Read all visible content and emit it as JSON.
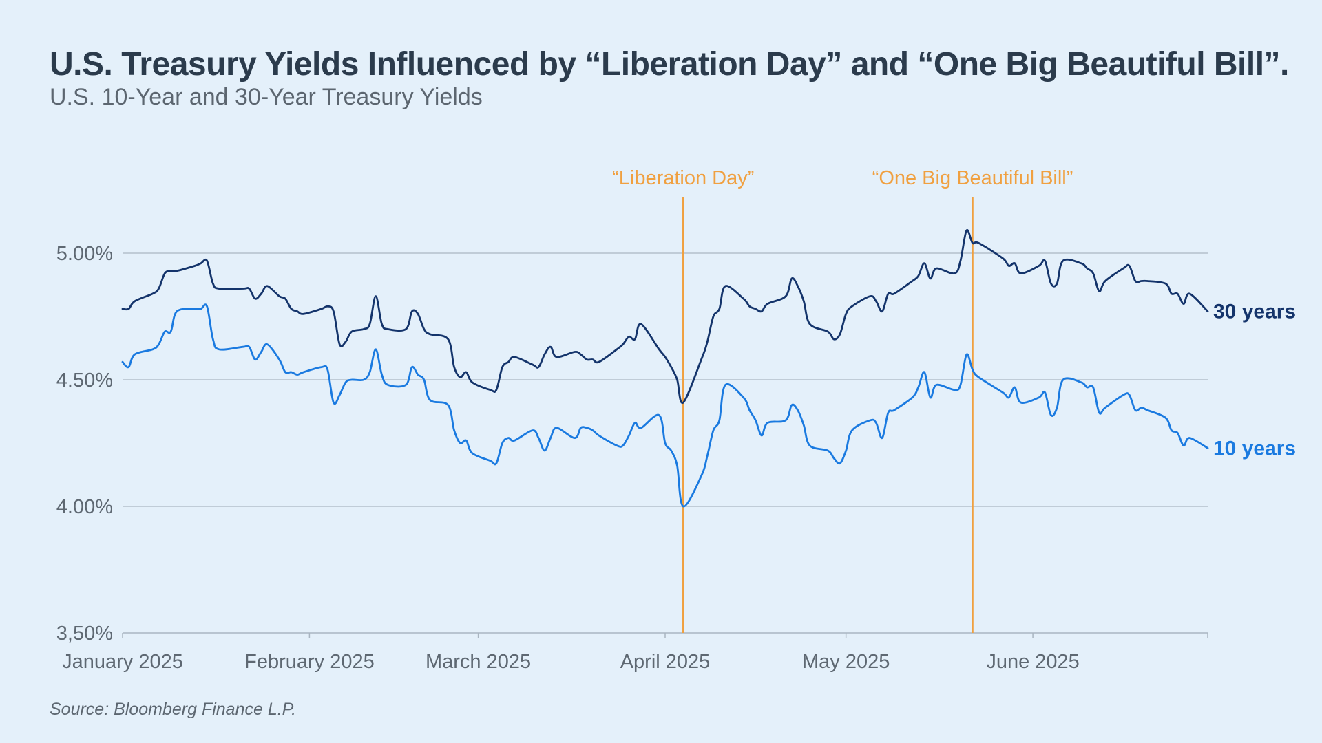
{
  "chart_data": {
    "type": "line",
    "title": "U.S. Treasury Yields Influenced by “Liberation Day” and “One Big Beautiful Bill”.",
    "subtitle": "U.S. 10-Year and 30-Year Treasury Yields",
    "source": "Source: Bloomberg Finance L.P.",
    "x_range": [
      "2025-01-01",
      "2025-06-30"
    ],
    "y_range": [
      3.5,
      5.0
    ],
    "y_ticks": [
      {
        "value": 5.0,
        "label": "5.00%"
      },
      {
        "value": 4.5,
        "label": "4.50%"
      },
      {
        "value": 4.0,
        "label": "4.00%"
      },
      {
        "value": 3.5,
        "label": "3,50%"
      }
    ],
    "x_ticks": [
      {
        "date": "2025-01-01",
        "label": "January 2025"
      },
      {
        "date": "2025-02-01",
        "label": "February 2025"
      },
      {
        "date": "2025-03-01",
        "label": "March 2025"
      },
      {
        "date": "2025-04-01",
        "label": "April 2025"
      },
      {
        "date": "2025-05-01",
        "label": "May 2025"
      },
      {
        "date": "2025-06-01",
        "label": "June 2025"
      }
    ],
    "grid": "horizontal",
    "annotations": [
      {
        "date": "2025-04-04",
        "label": "“Liberation Day”",
        "color": "#f0a040"
      },
      {
        "date": "2025-05-22",
        "label": "“One Big Beautiful Bill”",
        "color": "#f0a040"
      }
    ],
    "series": [
      {
        "name": "30 years",
        "color": "#14346b",
        "points": [
          [
            "2025-01-01",
            4.78
          ],
          [
            "2025-01-02",
            4.78
          ],
          [
            "2025-01-03",
            4.81
          ],
          [
            "2025-01-06",
            4.84
          ],
          [
            "2025-01-07",
            4.86
          ],
          [
            "2025-01-08",
            4.92
          ],
          [
            "2025-01-09",
            4.93
          ],
          [
            "2025-01-10",
            4.93
          ],
          [
            "2025-01-13",
            4.95
          ],
          [
            "2025-01-14",
            4.96
          ],
          [
            "2025-01-15",
            4.97
          ],
          [
            "2025-01-16",
            4.88
          ],
          [
            "2025-01-17",
            4.86
          ],
          [
            "2025-01-21",
            4.86
          ],
          [
            "2025-01-22",
            4.86
          ],
          [
            "2025-01-23",
            4.82
          ],
          [
            "2025-01-24",
            4.84
          ],
          [
            "2025-01-25",
            4.87
          ],
          [
            "2025-01-27",
            4.83
          ],
          [
            "2025-01-28",
            4.82
          ],
          [
            "2025-01-29",
            4.78
          ],
          [
            "2025-01-30",
            4.77
          ],
          [
            "2025-01-31",
            4.76
          ],
          [
            "2025-02-03",
            4.78
          ],
          [
            "2025-02-04",
            4.79
          ],
          [
            "2025-02-05",
            4.77
          ],
          [
            "2025-02-06",
            4.64
          ],
          [
            "2025-02-07",
            4.65
          ],
          [
            "2025-02-08",
            4.69
          ],
          [
            "2025-02-10",
            4.7
          ],
          [
            "2025-02-11",
            4.72
          ],
          [
            "2025-02-12",
            4.83
          ],
          [
            "2025-02-13",
            4.72
          ],
          [
            "2025-02-14",
            4.7
          ],
          [
            "2025-02-17",
            4.7
          ],
          [
            "2025-02-18",
            4.77
          ],
          [
            "2025-02-19",
            4.76
          ],
          [
            "2025-02-20",
            4.7
          ],
          [
            "2025-02-21",
            4.68
          ],
          [
            "2025-02-24",
            4.66
          ],
          [
            "2025-02-25",
            4.55
          ],
          [
            "2025-02-26",
            4.51
          ],
          [
            "2025-02-27",
            4.53
          ],
          [
            "2025-02-28",
            4.49
          ],
          [
            "2025-03-03",
            4.46
          ],
          [
            "2025-03-04",
            4.46
          ],
          [
            "2025-03-05",
            4.55
          ],
          [
            "2025-03-06",
            4.57
          ],
          [
            "2025-03-07",
            4.59
          ],
          [
            "2025-03-10",
            4.56
          ],
          [
            "2025-03-11",
            4.55
          ],
          [
            "2025-03-12",
            4.6
          ],
          [
            "2025-03-13",
            4.63
          ],
          [
            "2025-03-14",
            4.59
          ],
          [
            "2025-03-17",
            4.61
          ],
          [
            "2025-03-18",
            4.6
          ],
          [
            "2025-03-19",
            4.58
          ],
          [
            "2025-03-20",
            4.58
          ],
          [
            "2025-03-21",
            4.57
          ],
          [
            "2025-03-24",
            4.62
          ],
          [
            "2025-03-25",
            4.64
          ],
          [
            "2025-03-26",
            4.67
          ],
          [
            "2025-03-27",
            4.66
          ],
          [
            "2025-03-28",
            4.72
          ],
          [
            "2025-03-31",
            4.62
          ],
          [
            "2025-04-01",
            4.59
          ],
          [
            "2025-04-02",
            4.55
          ],
          [
            "2025-04-03",
            4.5
          ],
          [
            "2025-04-04",
            4.41
          ],
          [
            "2025-04-07",
            4.58
          ],
          [
            "2025-04-08",
            4.65
          ],
          [
            "2025-04-09",
            4.75
          ],
          [
            "2025-04-10",
            4.78
          ],
          [
            "2025-04-11",
            4.87
          ],
          [
            "2025-04-14",
            4.82
          ],
          [
            "2025-04-15",
            4.79
          ],
          [
            "2025-04-16",
            4.78
          ],
          [
            "2025-04-17",
            4.77
          ],
          [
            "2025-04-18",
            4.8
          ],
          [
            "2025-04-21",
            4.83
          ],
          [
            "2025-04-22",
            4.9
          ],
          [
            "2025-04-23",
            4.87
          ],
          [
            "2025-04-24",
            4.81
          ],
          [
            "2025-04-25",
            4.72
          ],
          [
            "2025-04-28",
            4.69
          ],
          [
            "2025-04-29",
            4.66
          ],
          [
            "2025-04-30",
            4.68
          ],
          [
            "2025-05-01",
            4.76
          ],
          [
            "2025-05-02",
            4.79
          ],
          [
            "2025-05-05",
            4.83
          ],
          [
            "2025-05-06",
            4.81
          ],
          [
            "2025-05-07",
            4.77
          ],
          [
            "2025-05-08",
            4.84
          ],
          [
            "2025-05-09",
            4.84
          ],
          [
            "2025-05-12",
            4.89
          ],
          [
            "2025-05-13",
            4.91
          ],
          [
            "2025-05-14",
            4.96
          ],
          [
            "2025-05-15",
            4.9
          ],
          [
            "2025-05-16",
            4.94
          ],
          [
            "2025-05-19",
            4.92
          ],
          [
            "2025-05-20",
            4.97
          ],
          [
            "2025-05-21",
            5.09
          ],
          [
            "2025-05-22",
            5.04
          ],
          [
            "2025-05-23",
            5.04
          ],
          [
            "2025-05-27",
            4.98
          ],
          [
            "2025-05-28",
            4.95
          ],
          [
            "2025-05-29",
            4.96
          ],
          [
            "2025-05-30",
            4.92
          ],
          [
            "2025-06-02",
            4.95
          ],
          [
            "2025-06-03",
            4.97
          ],
          [
            "2025-06-04",
            4.88
          ],
          [
            "2025-06-05",
            4.88
          ],
          [
            "2025-06-06",
            4.97
          ],
          [
            "2025-06-09",
            4.96
          ],
          [
            "2025-06-10",
            4.94
          ],
          [
            "2025-06-11",
            4.92
          ],
          [
            "2025-06-12",
            4.85
          ],
          [
            "2025-06-13",
            4.89
          ],
          [
            "2025-06-16",
            4.94
          ],
          [
            "2025-06-17",
            4.95
          ],
          [
            "2025-06-18",
            4.89
          ],
          [
            "2025-06-19",
            4.89
          ],
          [
            "2025-06-20",
            4.89
          ],
          [
            "2025-06-23",
            4.88
          ],
          [
            "2025-06-24",
            4.84
          ],
          [
            "2025-06-25",
            4.84
          ],
          [
            "2025-06-26",
            4.8
          ],
          [
            "2025-06-27",
            4.84
          ],
          [
            "2025-06-30",
            4.77
          ]
        ]
      },
      {
        "name": "10 years",
        "color": "#1a7ae0",
        "points": [
          [
            "2025-01-01",
            4.57
          ],
          [
            "2025-01-02",
            4.55
          ],
          [
            "2025-01-03",
            4.6
          ],
          [
            "2025-01-06",
            4.62
          ],
          [
            "2025-01-07",
            4.64
          ],
          [
            "2025-01-08",
            4.69
          ],
          [
            "2025-01-09",
            4.69
          ],
          [
            "2025-01-10",
            4.77
          ],
          [
            "2025-01-13",
            4.78
          ],
          [
            "2025-01-14",
            4.78
          ],
          [
            "2025-01-15",
            4.79
          ],
          [
            "2025-01-16",
            4.66
          ],
          [
            "2025-01-17",
            4.62
          ],
          [
            "2025-01-21",
            4.63
          ],
          [
            "2025-01-22",
            4.63
          ],
          [
            "2025-01-23",
            4.58
          ],
          [
            "2025-01-24",
            4.61
          ],
          [
            "2025-01-25",
            4.64
          ],
          [
            "2025-01-27",
            4.58
          ],
          [
            "2025-01-28",
            4.53
          ],
          [
            "2025-01-29",
            4.53
          ],
          [
            "2025-01-30",
            4.52
          ],
          [
            "2025-01-31",
            4.53
          ],
          [
            "2025-02-03",
            4.55
          ],
          [
            "2025-02-04",
            4.54
          ],
          [
            "2025-02-05",
            4.41
          ],
          [
            "2025-02-06",
            4.44
          ],
          [
            "2025-02-07",
            4.49
          ],
          [
            "2025-02-08",
            4.5
          ],
          [
            "2025-02-10",
            4.5
          ],
          [
            "2025-02-11",
            4.53
          ],
          [
            "2025-02-12",
            4.62
          ],
          [
            "2025-02-13",
            4.52
          ],
          [
            "2025-02-14",
            4.48
          ],
          [
            "2025-02-17",
            4.48
          ],
          [
            "2025-02-18",
            4.55
          ],
          [
            "2025-02-19",
            4.52
          ],
          [
            "2025-02-20",
            4.5
          ],
          [
            "2025-02-21",
            4.42
          ],
          [
            "2025-02-24",
            4.4
          ],
          [
            "2025-02-25",
            4.3
          ],
          [
            "2025-02-26",
            4.25
          ],
          [
            "2025-02-27",
            4.26
          ],
          [
            "2025-02-28",
            4.21
          ],
          [
            "2025-03-03",
            4.18
          ],
          [
            "2025-03-04",
            4.17
          ],
          [
            "2025-03-05",
            4.25
          ],
          [
            "2025-03-06",
            4.27
          ],
          [
            "2025-03-07",
            4.26
          ],
          [
            "2025-03-10",
            4.3
          ],
          [
            "2025-03-11",
            4.27
          ],
          [
            "2025-03-12",
            4.22
          ],
          [
            "2025-03-13",
            4.27
          ],
          [
            "2025-03-14",
            4.31
          ],
          [
            "2025-03-17",
            4.27
          ],
          [
            "2025-03-18",
            4.31
          ],
          [
            "2025-03-19",
            4.31
          ],
          [
            "2025-03-20",
            4.3
          ],
          [
            "2025-03-21",
            4.28
          ],
          [
            "2025-03-24",
            4.24
          ],
          [
            "2025-03-25",
            4.24
          ],
          [
            "2025-03-26",
            4.28
          ],
          [
            "2025-03-27",
            4.33
          ],
          [
            "2025-03-28",
            4.31
          ],
          [
            "2025-03-31",
            4.36
          ],
          [
            "2025-04-01",
            4.25
          ],
          [
            "2025-04-02",
            4.22
          ],
          [
            "2025-04-03",
            4.16
          ],
          [
            "2025-04-04",
            4.0
          ],
          [
            "2025-04-07",
            4.12
          ],
          [
            "2025-04-08",
            4.2
          ],
          [
            "2025-04-09",
            4.3
          ],
          [
            "2025-04-10",
            4.34
          ],
          [
            "2025-04-11",
            4.48
          ],
          [
            "2025-04-14",
            4.43
          ],
          [
            "2025-04-15",
            4.38
          ],
          [
            "2025-04-16",
            4.34
          ],
          [
            "2025-04-17",
            4.28
          ],
          [
            "2025-04-18",
            4.33
          ],
          [
            "2025-04-21",
            4.34
          ],
          [
            "2025-04-22",
            4.4
          ],
          [
            "2025-04-23",
            4.38
          ],
          [
            "2025-04-24",
            4.32
          ],
          [
            "2025-04-25",
            4.24
          ],
          [
            "2025-04-28",
            4.22
          ],
          [
            "2025-04-29",
            4.19
          ],
          [
            "2025-04-30",
            4.17
          ],
          [
            "2025-05-01",
            4.22
          ],
          [
            "2025-05-02",
            4.3
          ],
          [
            "2025-05-05",
            4.34
          ],
          [
            "2025-05-06",
            4.33
          ],
          [
            "2025-05-07",
            4.27
          ],
          [
            "2025-05-08",
            4.37
          ],
          [
            "2025-05-09",
            4.38
          ],
          [
            "2025-05-12",
            4.43
          ],
          [
            "2025-05-13",
            4.47
          ],
          [
            "2025-05-14",
            4.53
          ],
          [
            "2025-05-15",
            4.43
          ],
          [
            "2025-05-16",
            4.48
          ],
          [
            "2025-05-19",
            4.46
          ],
          [
            "2025-05-20",
            4.48
          ],
          [
            "2025-05-21",
            4.6
          ],
          [
            "2025-05-22",
            4.54
          ],
          [
            "2025-05-23",
            4.51
          ],
          [
            "2025-05-27",
            4.45
          ],
          [
            "2025-05-28",
            4.43
          ],
          [
            "2025-05-29",
            4.47
          ],
          [
            "2025-05-30",
            4.41
          ],
          [
            "2025-06-02",
            4.43
          ],
          [
            "2025-06-03",
            4.45
          ],
          [
            "2025-06-04",
            4.36
          ],
          [
            "2025-06-05",
            4.39
          ],
          [
            "2025-06-06",
            4.5
          ],
          [
            "2025-06-09",
            4.49
          ],
          [
            "2025-06-10",
            4.47
          ],
          [
            "2025-06-11",
            4.47
          ],
          [
            "2025-06-12",
            4.37
          ],
          [
            "2025-06-13",
            4.39
          ],
          [
            "2025-06-16",
            4.44
          ],
          [
            "2025-06-17",
            4.44
          ],
          [
            "2025-06-18",
            4.38
          ],
          [
            "2025-06-19",
            4.39
          ],
          [
            "2025-06-20",
            4.38
          ],
          [
            "2025-06-23",
            4.35
          ],
          [
            "2025-06-24",
            4.3
          ],
          [
            "2025-06-25",
            4.29
          ],
          [
            "2025-06-26",
            4.24
          ],
          [
            "2025-06-27",
            4.27
          ],
          [
            "2025-06-30",
            4.23
          ]
        ]
      }
    ]
  }
}
